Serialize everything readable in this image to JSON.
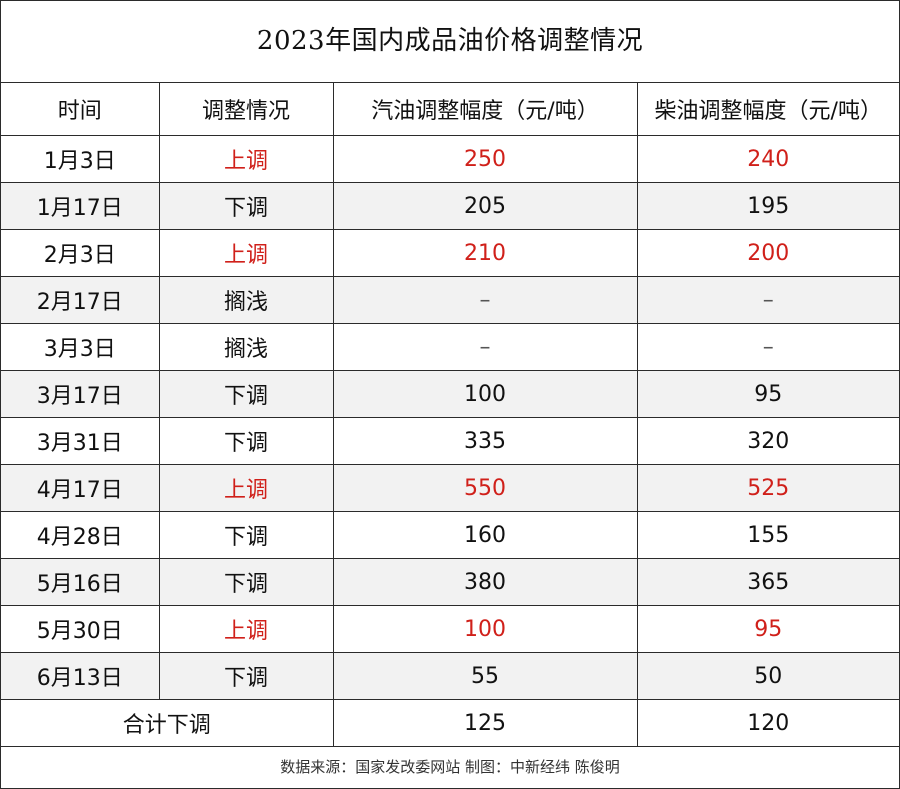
{
  "title": "2023年国内成品油价格调整情况",
  "headers": [
    "时间",
    "调整情况",
    "汽油调整幅度（元/吨）",
    "柴油调整幅度（元/吨）"
  ],
  "colors": {
    "up": "#d0201a",
    "normal": "#111111",
    "shade": "#f2f2f2"
  },
  "rows": [
    {
      "date": "1月3日",
      "status": "上调",
      "gasoline": "250",
      "diesel": "240",
      "up": true
    },
    {
      "date": "1月17日",
      "status": "下调",
      "gasoline": "205",
      "diesel": "195",
      "up": false
    },
    {
      "date": "2月3日",
      "status": "上调",
      "gasoline": "210",
      "diesel": "200",
      "up": true
    },
    {
      "date": "2月17日",
      "status": "搁浅",
      "gasoline": "–",
      "diesel": "–",
      "up": false
    },
    {
      "date": "3月3日",
      "status": "搁浅",
      "gasoline": "–",
      "diesel": "–",
      "up": false
    },
    {
      "date": "3月17日",
      "status": "下调",
      "gasoline": "100",
      "diesel": "95",
      "up": false
    },
    {
      "date": "3月31日",
      "status": "下调",
      "gasoline": "335",
      "diesel": "320",
      "up": false
    },
    {
      "date": "4月17日",
      "status": "上调",
      "gasoline": "550",
      "diesel": "525",
      "up": true
    },
    {
      "date": "4月28日",
      "status": "下调",
      "gasoline": "160",
      "diesel": "155",
      "up": false
    },
    {
      "date": "5月16日",
      "status": "下调",
      "gasoline": "380",
      "diesel": "365",
      "up": false
    },
    {
      "date": "5月30日",
      "status": "上调",
      "gasoline": "100",
      "diesel": "95",
      "up": true
    },
    {
      "date": "6月13日",
      "status": "下调",
      "gasoline": "55",
      "diesel": "50",
      "up": false
    }
  ],
  "total": {
    "label": "合计下调",
    "gasoline": "125",
    "diesel": "120"
  },
  "source": "数据来源：国家发改委网站  制图：中新经纬  陈俊明"
}
